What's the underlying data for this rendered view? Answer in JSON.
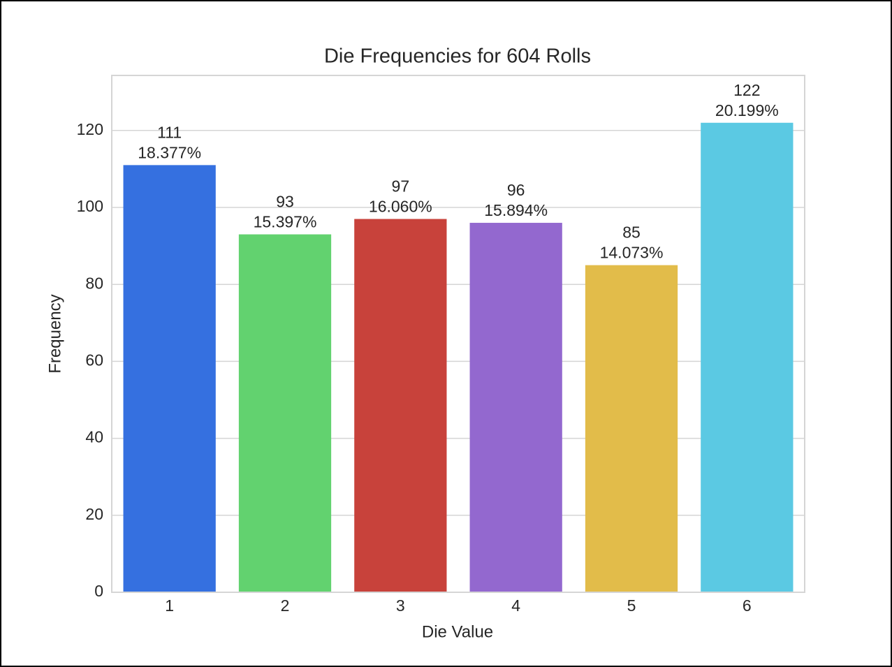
{
  "chart_data": {
    "type": "bar",
    "title": "Die Frequencies for 604 Rolls",
    "x_label": "Die Value",
    "y_label": "Frequency",
    "categories": [
      "1",
      "2",
      "3",
      "4",
      "5",
      "6"
    ],
    "values": [
      111,
      93,
      97,
      96,
      85,
      122
    ],
    "percent_labels": [
      "18.377%",
      "15.397%",
      "16.060%",
      "15.894%",
      "14.073%",
      "20.199%"
    ],
    "colors": [
      "#3570e0",
      "#62d26f",
      "#c8423b",
      "#9368cf",
      "#e2bc4a",
      "#5bc9e3"
    ],
    "ylim": [
      0,
      134.3
    ],
    "yticks": [
      0,
      20,
      40,
      60,
      80,
      100,
      120
    ],
    "grid": true
  }
}
